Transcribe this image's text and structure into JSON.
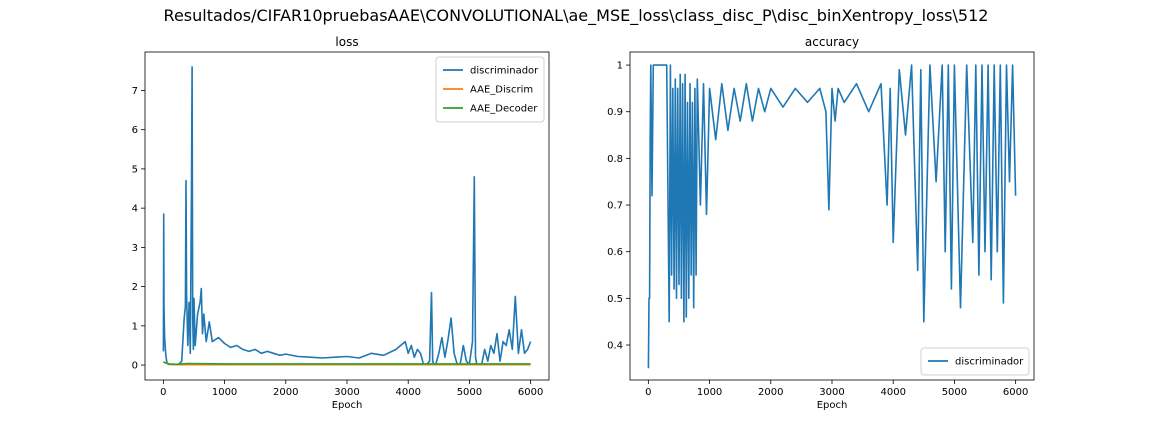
{
  "figure": {
    "suptitle": "Resultados/CIFAR10pruebasAAE\\CONVOLUTIONAL\\ae_MSE_loss\\class_disc_P\\disc_binXentropy_loss\\512"
  },
  "colors": {
    "blue": "#1f77b4",
    "orange": "#ff7f0e",
    "green": "#2ca02c"
  },
  "chart_data": [
    {
      "type": "line",
      "title": "loss",
      "xlabel": "Epoch",
      "ylabel": "",
      "xlim": [
        -300,
        6300
      ],
      "ylim": [
        -0.38,
        7.98
      ],
      "xticks": [
        0,
        1000,
        2000,
        3000,
        4000,
        5000,
        6000
      ],
      "yticks": [
        0,
        1,
        2,
        3,
        4,
        5,
        6,
        7
      ],
      "legend_position": "top-right",
      "series": [
        {
          "name": "discriminador",
          "color": "#1f77b4",
          "x": [
            0,
            5,
            10,
            20,
            40,
            60,
            80,
            100,
            150,
            200,
            250,
            300,
            340,
            360,
            370,
            380,
            400,
            420,
            440,
            460,
            470,
            480,
            490,
            500,
            520,
            560,
            600,
            620,
            640,
            660,
            700,
            750,
            800,
            900,
            1000,
            1100,
            1200,
            1300,
            1400,
            1500,
            1600,
            1700,
            1800,
            1900,
            2000,
            2200,
            2400,
            2600,
            2800,
            3000,
            3200,
            3400,
            3600,
            3800,
            3950,
            4000,
            4050,
            4100,
            4150,
            4200,
            4250,
            4300,
            4350,
            4380,
            4400,
            4420,
            4450,
            4500,
            4550,
            4600,
            4650,
            4700,
            4750,
            4800,
            4850,
            4900,
            4950,
            5000,
            5050,
            5080,
            5100,
            5120,
            5150,
            5200,
            5250,
            5300,
            5350,
            5400,
            5450,
            5500,
            5550,
            5600,
            5650,
            5700,
            5750,
            5800,
            5850,
            5900,
            5950,
            6000
          ],
          "values": [
            0.35,
            3.85,
            1.5,
            0.7,
            0.25,
            0.05,
            0.02,
            0.02,
            0.02,
            0.02,
            0.02,
            0.1,
            1.2,
            1.5,
            4.7,
            1.8,
            0.5,
            1.6,
            0.3,
            4.6,
            7.6,
            1.2,
            0.4,
            1.7,
            0.5,
            1.3,
            1.6,
            1.95,
            0.8,
            1.3,
            0.6,
            1.1,
            0.6,
            0.7,
            0.55,
            0.45,
            0.5,
            0.4,
            0.35,
            0.4,
            0.3,
            0.35,
            0.3,
            0.25,
            0.28,
            0.22,
            0.2,
            0.18,
            0.2,
            0.22,
            0.18,
            0.3,
            0.25,
            0.4,
            0.6,
            0.3,
            0.5,
            0.2,
            0.4,
            0.3,
            0.02,
            0.02,
            0.1,
            1.85,
            0.1,
            0.02,
            0.02,
            0.3,
            0.7,
            0.2,
            0.65,
            1.2,
            0.3,
            0.02,
            0.02,
            0.5,
            0.1,
            0.02,
            0.6,
            4.8,
            0.2,
            0.02,
            0.02,
            0.02,
            0.4,
            0.1,
            0.5,
            0.3,
            0.8,
            0.1,
            0.6,
            0.5,
            0.9,
            0.4,
            1.75,
            0.3,
            0.9,
            0.3,
            0.4,
            0.6
          ]
        },
        {
          "name": "AAE_Discrim",
          "color": "#ff7f0e",
          "x": [
            0,
            100,
            200,
            400,
            1000,
            2000,
            3000,
            4000,
            5000,
            6000
          ],
          "values": [
            0.08,
            0.02,
            0.01,
            0.01,
            0.01,
            0.01,
            0.01,
            0.01,
            0.01,
            0.01
          ]
        },
        {
          "name": "AAE_Decoder",
          "color": "#2ca02c",
          "x": [
            0,
            50,
            100,
            200,
            400,
            1000,
            2000,
            3000,
            4000,
            5000,
            6000
          ],
          "values": [
            0.08,
            0.05,
            0.03,
            0.02,
            0.04,
            0.03,
            0.03,
            0.03,
            0.03,
            0.03,
            0.03
          ]
        }
      ]
    },
    {
      "type": "line",
      "title": "accuracy",
      "xlabel": "Epoch",
      "ylabel": "",
      "xlim": [
        -300,
        6300
      ],
      "ylim": [
        0.325,
        1.028
      ],
      "xticks": [
        0,
        1000,
        2000,
        3000,
        4000,
        5000,
        6000
      ],
      "yticks": [
        0.4,
        0.5,
        0.6,
        0.7,
        0.8,
        0.9,
        1.0
      ],
      "legend_position": "bottom-right",
      "series": [
        {
          "name": "discriminador",
          "color": "#1f77b4",
          "x": [
            0,
            10,
            20,
            30,
            40,
            60,
            80,
            100,
            150,
            200,
            250,
            300,
            340,
            360,
            380,
            400,
            420,
            440,
            460,
            480,
            500,
            520,
            540,
            560,
            580,
            600,
            620,
            640,
            660,
            680,
            700,
            720,
            740,
            760,
            780,
            800,
            850,
            900,
            950,
            1000,
            1100,
            1200,
            1300,
            1400,
            1500,
            1600,
            1700,
            1800,
            1900,
            2000,
            2200,
            2400,
            2600,
            2800,
            2900,
            2950,
            3000,
            3050,
            3100,
            3200,
            3400,
            3600,
            3800,
            3900,
            3950,
            4000,
            4100,
            4200,
            4300,
            4400,
            4450,
            4500,
            4600,
            4700,
            4800,
            4850,
            4900,
            4950,
            5000,
            5100,
            5200,
            5300,
            5350,
            5400,
            5450,
            5500,
            5550,
            5600,
            5650,
            5700,
            5750,
            5800,
            5850,
            5900,
            5950,
            6000
          ],
          "values": [
            0.35,
            0.5,
            0.5,
            0.85,
            1.0,
            0.72,
            1.0,
            1.0,
            1.0,
            1.0,
            1.0,
            1.0,
            0.45,
            1.0,
            0.55,
            0.95,
            0.52,
            0.97,
            0.5,
            0.95,
            0.53,
            0.98,
            0.5,
            0.96,
            0.45,
            0.98,
            0.46,
            0.92,
            0.5,
            0.96,
            0.55,
            0.92,
            0.48,
            0.95,
            0.55,
            0.97,
            0.7,
            0.96,
            0.68,
            0.95,
            0.84,
            0.96,
            0.86,
            0.95,
            0.88,
            0.96,
            0.88,
            0.95,
            0.9,
            0.95,
            0.91,
            0.95,
            0.92,
            0.95,
            0.9,
            0.69,
            0.95,
            0.88,
            0.95,
            0.92,
            0.96,
            0.9,
            0.96,
            0.7,
            0.95,
            0.62,
            0.99,
            0.85,
            1.0,
            0.56,
            0.99,
            0.45,
            1.0,
            0.75,
            1.0,
            0.6,
            1.0,
            0.52,
            1.0,
            0.48,
            1.0,
            0.62,
            1.0,
            0.55,
            1.0,
            0.6,
            1.0,
            0.54,
            1.0,
            0.6,
            1.0,
            0.49,
            1.0,
            0.75,
            1.0,
            0.72
          ]
        }
      ]
    }
  ]
}
